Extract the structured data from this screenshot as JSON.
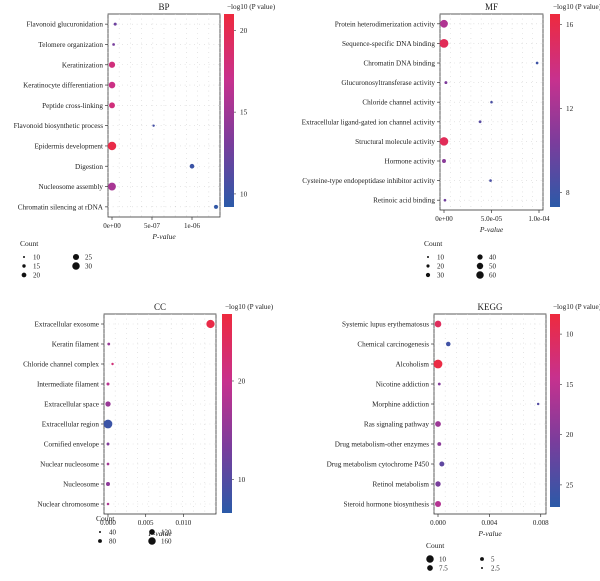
{
  "chart_data": [
    {
      "type": "scatter",
      "title": "BP",
      "xlabel": "P-value",
      "xlim": [
        0,
        1.3e-06
      ],
      "x_ticks": [
        0,
        5e-07,
        1e-06
      ],
      "x_tick_labels": [
        "0e+00",
        "5e-07",
        "1e-06"
      ],
      "categories": [
        "Flavonoid glucuronidation",
        "Telomere organization",
        "Keratinization",
        "Keratinocyte differentiation",
        "Peptide cross-linking",
        "Flavonoid biosynthetic process",
        "Epidermis development",
        "Digestion",
        "Nucleosome assembly",
        "Chromatin silencing at rDNA"
      ],
      "x": [
        4e-08,
        2e-08,
        0,
        0,
        0,
        5.2e-07,
        0,
        1e-06,
        0,
        1.3e-06
      ],
      "count": [
        12,
        11,
        22,
        23,
        21,
        10,
        29,
        17,
        27,
        15
      ],
      "color_value": [
        12.5,
        13.0,
        18.0,
        17.5,
        18.0,
        10.5,
        20.5,
        10.0,
        15.5,
        9.5
      ],
      "colorbar": {
        "label": "−log10 (P value)",
        "range": [
          9.2,
          21
        ],
        "ticks": [
          10,
          15,
          20
        ]
      },
      "legend": {
        "title": "Count",
        "items": [
          10,
          15,
          20,
          25,
          30
        ]
      }
    },
    {
      "type": "scatter",
      "title": "MF",
      "xlabel": "P-value",
      "xlim": [
        0,
        0.0001
      ],
      "x_ticks": [
        0,
        5e-05,
        0.0001
      ],
      "x_tick_labels": [
        "0e+00",
        "5.0e-05",
        "1.0e-04"
      ],
      "categories": [
        "Protein heterodimerization activity",
        "Sequence-specific DNA binding",
        "Chromatin DNA binding",
        "Glucuronosyltransferase activity",
        "Chloride channel activity",
        "Extracellular ligand-gated ion channel activity",
        "Structural molecule activity",
        "Hormone activity",
        "Cysteine-type endopeptidase inhibitor activity",
        "Retinoic acid binding"
      ],
      "x": [
        0,
        0,
        9.8e-05,
        2e-06,
        5e-05,
        3.8e-05,
        0,
        0,
        4.9e-05,
        1e-06
      ],
      "count": [
        52,
        60,
        12,
        14,
        11,
        13,
        58,
        22,
        12,
        12
      ],
      "color_value": [
        12.5,
        15.5,
        8.0,
        10.5,
        8.5,
        9.0,
        15.5,
        11.0,
        8.5,
        10.0
      ],
      "colorbar": {
        "label": "−log10 (P value)",
        "range": [
          7.3,
          16.5
        ],
        "ticks": [
          8,
          12,
          16
        ]
      },
      "legend": {
        "title": "Count",
        "items": [
          10,
          20,
          30,
          40,
          50,
          60
        ]
      }
    },
    {
      "type": "scatter",
      "title": "CC",
      "xlabel": "P-value",
      "xlim": [
        0,
        0.0138
      ],
      "x_ticks": [
        0,
        0.005,
        0.01
      ],
      "x_tick_labels": [
        "0.000",
        "0.005",
        "0.010"
      ],
      "categories": [
        "Extracellular exosome",
        "Keratin filament",
        "Chloride channel complex",
        "Intermediate filament",
        "Extracellular space",
        "Extracellular region",
        "Cornified envelope",
        "Nuclear nucleosome",
        "Nucleosome",
        "Nuclear chromosome"
      ],
      "x": [
        0.0136,
        0.0001,
        0.0006,
        0,
        0,
        0,
        0,
        0,
        0,
        0
      ],
      "count": [
        150,
        48,
        38,
        52,
        95,
        158,
        50,
        45,
        70,
        42
      ],
      "color_value": [
        26,
        16,
        22,
        19,
        16,
        8,
        14,
        17,
        15,
        18
      ],
      "colorbar": {
        "label": "−log10 (P value)",
        "range": [
          6.6,
          26.8
        ],
        "ticks": [
          10,
          20
        ]
      },
      "legend": {
        "title": "Count",
        "items": [
          40,
          80,
          120,
          160
        ]
      }
    },
    {
      "type": "scatter",
      "title": "KEGG",
      "xlabel": "P-value",
      "xlim": [
        0,
        0.0081
      ],
      "x_ticks": [
        0,
        0.004,
        0.008
      ],
      "x_tick_labels": [
        "0.000",
        "0.004",
        "0.008"
      ],
      "categories": [
        "Systemic lupus erythematosus",
        "Chemical carcinogenesis",
        "Alcoholism",
        "Nicotine addiction",
        "Morphine addiction",
        "Ras signaling pathway",
        "Drug metabolism-other enzymes",
        "Drug metabolism cytochrome P450",
        "Retinol metabolism",
        "Steroid hormone biosynthesis"
      ],
      "x": [
        0,
        0.0008,
        0,
        0.0001,
        0.0078,
        0,
        0.0001,
        0.0003,
        0,
        0
      ],
      "count": [
        7.5,
        5,
        10.5,
        3,
        2.6,
        6.5,
        4.2,
        5.5,
        6,
        6.8
      ],
      "color_value": [
        10.5,
        25.5,
        8.5,
        20.0,
        24.0,
        18.0,
        19.5,
        23.0,
        21.0,
        16.0
      ],
      "colorbar": {
        "label": "−log10 (P value)",
        "range": [
          8,
          27.2
        ],
        "ticks": [
          10,
          15,
          20,
          25
        ],
        "reversed": true
      },
      "legend": {
        "title": "Count",
        "items": [
          10,
          7.5,
          5,
          2.5
        ]
      }
    }
  ]
}
